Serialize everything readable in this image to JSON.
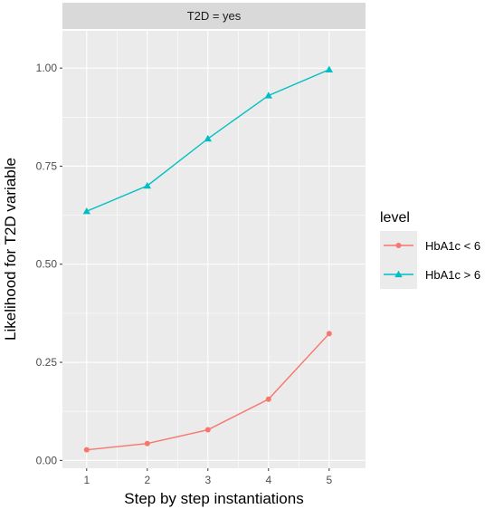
{
  "chart_data": {
    "type": "line",
    "facet_label": "T2D = yes",
    "xlabel": "Step by step instantiations",
    "ylabel": "Likelihood for T2D variable",
    "x": [
      1,
      2,
      3,
      4,
      5
    ],
    "x_ticks": [
      "1",
      "2",
      "3",
      "4",
      "5"
    ],
    "xlim": [
      0.6,
      5.6
    ],
    "ylim": [
      -0.02,
      1.095
    ],
    "y_ticks": [
      0.0,
      0.25,
      0.5,
      0.75,
      1.0
    ],
    "y_tick_labels": [
      "0.00",
      "0.25",
      "0.50",
      "0.75",
      "1.00"
    ],
    "grid": true,
    "legend": {
      "title": "level",
      "position": "right"
    },
    "series": [
      {
        "name": "HbA1c < 6",
        "color": "#F8766D",
        "marker": "circle",
        "values": [
          0.027,
          0.043,
          0.078,
          0.156,
          0.323
        ]
      },
      {
        "name": "HbA1c > 6",
        "color": "#00BFC4",
        "marker": "triangle",
        "values": [
          0.635,
          0.7,
          0.82,
          0.93,
          0.996
        ]
      }
    ],
    "panel_bg": "#EBEBEB",
    "strip_bg": "#D9D9D9",
    "grid_color": "#FFFFFF"
  }
}
